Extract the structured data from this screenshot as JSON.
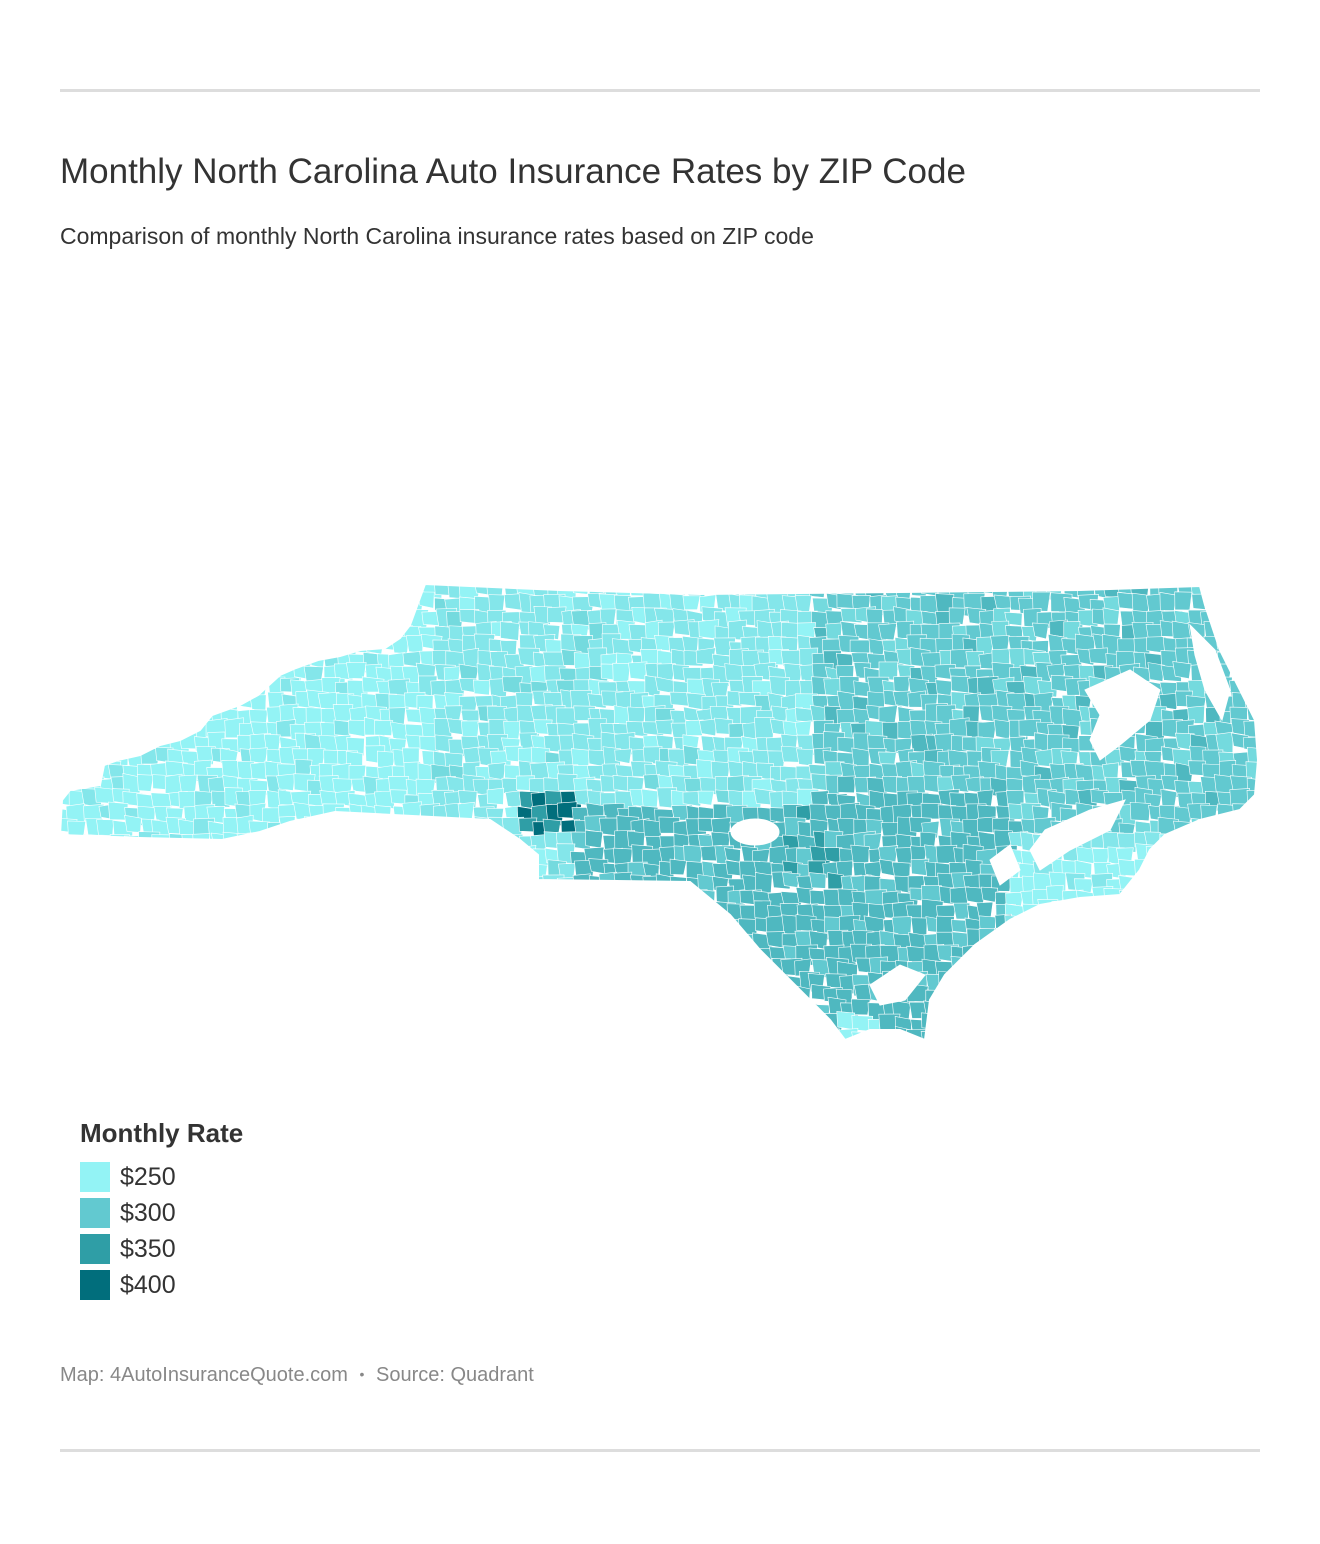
{
  "header": {
    "title": "Monthly North Carolina Auto Insurance Rates by ZIP Code",
    "subtitle": "Comparison of monthly North Carolina insurance rates based on ZIP code"
  },
  "legend": {
    "title": "Monthly Rate",
    "items": [
      {
        "label": "$250",
        "color": "#93f3f5"
      },
      {
        "label": "$300",
        "color": "#62c9d0"
      },
      {
        "label": "$350",
        "color": "#2f9ea6"
      },
      {
        "label": "$400",
        "color": "#016e7c"
      }
    ]
  },
  "map": {
    "region": "North Carolina",
    "palette": [
      "#93f3f5",
      "#84e6ea",
      "#74dade",
      "#62c9d0",
      "#4fb8c0",
      "#2f9ea6",
      "#016e7c"
    ],
    "boundary_color": "#ffffff"
  },
  "footer": {
    "map_credit": "Map: 4AutoInsuranceQuote.com",
    "separator": "•",
    "source": "Source: Quadrant"
  }
}
